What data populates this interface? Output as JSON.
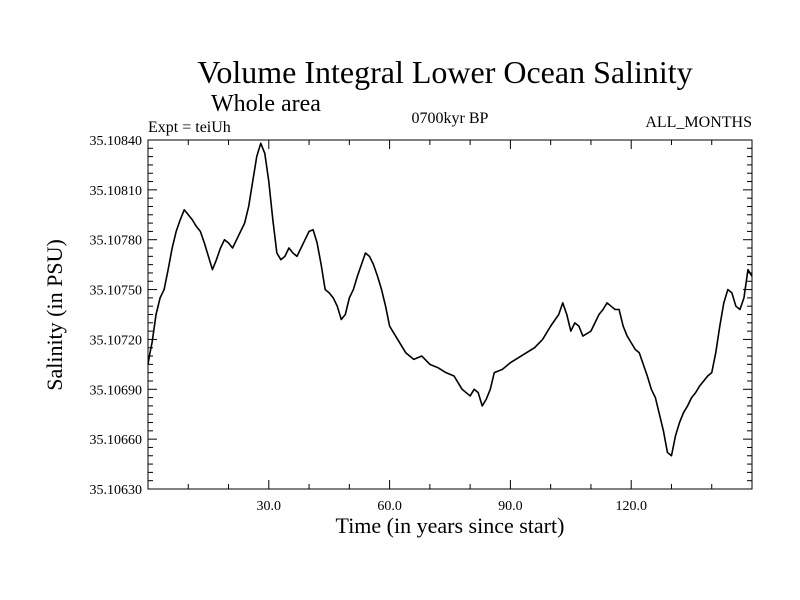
{
  "chart_data": {
    "type": "line",
    "title": "Volume Integral Lower Ocean Salinity",
    "subtitle": "Whole area",
    "experiment": "Expt = teiUh",
    "period": "0700kyr BP",
    "months": "ALL_MONTHS",
    "xlabel": "Time (in years since start)",
    "ylabel": "Salinity (in PSU)",
    "xlim": [
      0,
      150
    ],
    "ylim": [
      35.1063,
      35.1084
    ],
    "x_ticks": [
      {
        "value": 30,
        "label": "30.0"
      },
      {
        "value": 60,
        "label": "60.0"
      },
      {
        "value": 90,
        "label": "90.0"
      },
      {
        "value": 120,
        "label": "120.0"
      }
    ],
    "y_ticks": [
      {
        "value": 35.1063,
        "label": "35.10630"
      },
      {
        "value": 35.1066,
        "label": "35.10660"
      },
      {
        "value": 35.1069,
        "label": "35.10690"
      },
      {
        "value": 35.1072,
        "label": "35.10720"
      },
      {
        "value": 35.1075,
        "label": "35.10750"
      },
      {
        "value": 35.1078,
        "label": "35.10780"
      },
      {
        "value": 35.1081,
        "label": "35.10810"
      },
      {
        "value": 35.1084,
        "label": "35.10840"
      }
    ],
    "series": [
      {
        "name": "salinity",
        "x": [
          0,
          0.5,
          1,
          2,
          3,
          4,
          5,
          6,
          7,
          8,
          9,
          10,
          11,
          12,
          13,
          14,
          15,
          16,
          17,
          18,
          19,
          20,
          21,
          22,
          23,
          24,
          25,
          26,
          27,
          28,
          29,
          30,
          31,
          32,
          33,
          34,
          35,
          36,
          37,
          38,
          39,
          40,
          41,
          42,
          43,
          44,
          45,
          46,
          47,
          48,
          49,
          50,
          51,
          52,
          53,
          54,
          55,
          56,
          57,
          58,
          59,
          60,
          62,
          64,
          66,
          68,
          70,
          72,
          74,
          76,
          78,
          80,
          81,
          82,
          83,
          84,
          85,
          86,
          88,
          90,
          92,
          94,
          96,
          98,
          100,
          102,
          103,
          104,
          105,
          106,
          107,
          108,
          110,
          112,
          113,
          114,
          115,
          116,
          117,
          118,
          119,
          120,
          121,
          122,
          123,
          124,
          125,
          126,
          127,
          128,
          129,
          130,
          131,
          132,
          133,
          134,
          135,
          136,
          137,
          138,
          139,
          140,
          141,
          142,
          143,
          144,
          145,
          146,
          147,
          148,
          149,
          150
        ],
        "y": [
          35.10705,
          35.10712,
          35.10718,
          35.10735,
          35.10745,
          35.1075,
          35.10762,
          35.10775,
          35.10785,
          35.10792,
          35.10798,
          35.10795,
          35.10792,
          35.10788,
          35.10785,
          35.10778,
          35.1077,
          35.10762,
          35.10768,
          35.10775,
          35.1078,
          35.10778,
          35.10775,
          35.1078,
          35.10785,
          35.1079,
          35.108,
          35.10815,
          35.1083,
          35.10838,
          35.10832,
          35.10815,
          35.10792,
          35.10772,
          35.10768,
          35.1077,
          35.10775,
          35.10772,
          35.1077,
          35.10775,
          35.1078,
          35.10785,
          35.10786,
          35.10778,
          35.10765,
          35.1075,
          35.10748,
          35.10745,
          35.1074,
          35.10732,
          35.10735,
          35.10745,
          35.1075,
          35.10758,
          35.10765,
          35.10772,
          35.1077,
          35.10765,
          35.10758,
          35.1075,
          35.1074,
          35.10728,
          35.1072,
          35.10712,
          35.10708,
          35.1071,
          35.10705,
          35.10703,
          35.107,
          35.10698,
          35.1069,
          35.10686,
          35.1069,
          35.10688,
          35.1068,
          35.10684,
          35.1069,
          35.107,
          35.10702,
          35.10706,
          35.10709,
          35.10712,
          35.10715,
          35.1072,
          35.10728,
          35.10735,
          35.10742,
          35.10735,
          35.10725,
          35.1073,
          35.10728,
          35.10722,
          35.10725,
          35.10735,
          35.10738,
          35.10742,
          35.1074,
          35.10738,
          35.10738,
          35.10728,
          35.10722,
          35.10718,
          35.10714,
          35.10712,
          35.10705,
          35.10698,
          35.1069,
          35.10685,
          35.10675,
          35.10665,
          35.10652,
          35.1065,
          35.10662,
          35.1067,
          35.10676,
          35.1068,
          35.10685,
          35.10688,
          35.10692,
          35.10695,
          35.10698,
          35.107,
          35.10712,
          35.10728,
          35.10742,
          35.1075,
          35.10748,
          35.1074,
          35.10738,
          35.10745,
          35.10762,
          35.10758
        ]
      }
    ]
  }
}
